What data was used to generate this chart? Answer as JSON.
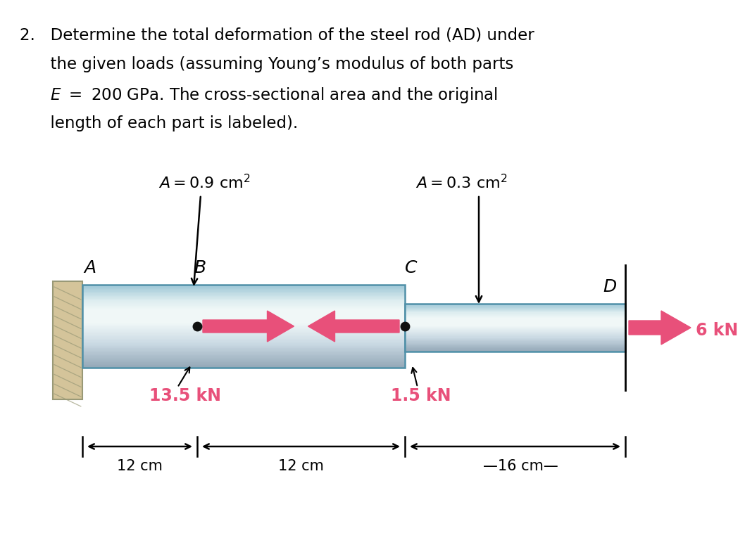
{
  "bg_color": "#ffffff",
  "wall_color": "#d4c49a",
  "wall_hatch_color": "#999977",
  "arrow_color": "#e8507a",
  "force_label_color": "#e8507a",
  "dim_color": "#000000",
  "rod_border_color": "#5090a8",
  "force_B": "13.5 kN",
  "force_C": "1.5 kN",
  "force_D": "6 kN",
  "dim1": "12 cm",
  "dim2": "12 cm",
  "dim3": "–16 cm—",
  "pt_A": "A",
  "pt_B": "B",
  "pt_C": "C",
  "pt_D": "D",
  "title_line1": "2.   Determine the total deformation of the steel rod (AD) under",
  "title_line2": "      the given loads (assuming Young’s modulus of both parts",
  "title_line3": "      $E\\ =\\ 200$ GPa. The cross-sectional area and the original",
  "title_line4": "      length of each part is labeled).",
  "A1_text": "$A = 0.9$ cm$^2$",
  "A2_text": "$A = 0.3$ cm$^2$"
}
